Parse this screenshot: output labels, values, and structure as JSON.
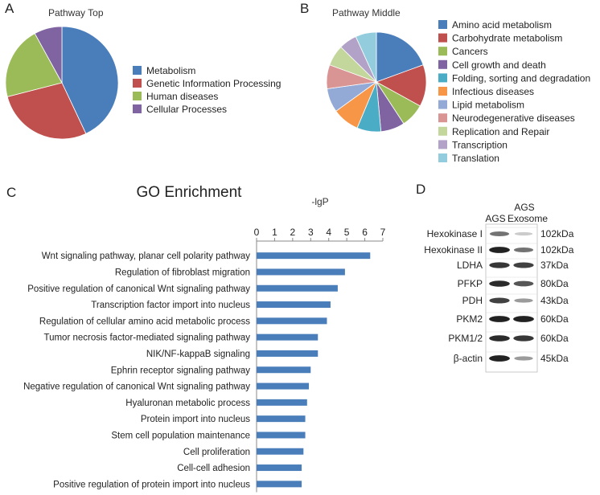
{
  "panels": {
    "A": "A",
    "B": "B",
    "C": "C",
    "D": "D"
  },
  "chart_data": [
    {
      "type": "pie",
      "title": "Pathway Top",
      "categories": [
        "Metabolism",
        "Genetic Information Processing",
        "Human diseases",
        "Cellular Processes"
      ],
      "values": [
        43,
        28,
        21,
        8
      ],
      "colors": [
        "#4a7ebb",
        "#c0504d",
        "#9bbb59",
        "#8064a2"
      ],
      "legend": "right"
    },
    {
      "type": "pie",
      "title": "Pathway Middle",
      "categories": [
        "Amino acid metabolism",
        "Carbohydrate metabolism",
        "Cancers",
        "Cell growth and death",
        "Folding, sorting and degradation",
        "Infectious diseases",
        "Lipid metabolism",
        "Neurodegenerative diseases",
        "Replication and Repair",
        "Transcription",
        "Translation"
      ],
      "values": [
        20,
        14,
        8,
        8,
        8,
        9,
        8,
        8,
        7,
        6,
        7
      ],
      "colors": [
        "#4a7ebb",
        "#c0504d",
        "#9bbb59",
        "#8064a2",
        "#4bacc6",
        "#f79646",
        "#93a9d6",
        "#d99594",
        "#c3d69b",
        "#b3a2c7",
        "#93cddd"
      ],
      "legend": "right"
    },
    {
      "type": "bar",
      "orientation": "horizontal",
      "title": "GO Enrichment",
      "xlabel": "-lgP",
      "xlim": [
        0,
        7
      ],
      "xticks": [
        0,
        1,
        2,
        3,
        4,
        5,
        6,
        7
      ],
      "categories": [
        "Wnt signaling pathway, planar cell polarity pathway",
        "Regulation of fibroblast migration",
        "Positive regulation of canonical Wnt signaling pathway",
        "Transcription factor import into nucleus",
        "Regulation of cellular amino acid metabolic process",
        "Tumor necrosis factor-mediated signaling pathway",
        "NIK/NF-kappaB signaling",
        "Ephrin receptor signaling pathway",
        "Negative regulation of canonical Wnt signaling pathway",
        "Hyaluronan metabolic process",
        "Protein import into nucleus",
        "Stem cell population maintenance",
        "Cell proliferation",
        "Cell-cell adhesion",
        "Positive regulation of protein import into nucleus"
      ],
      "values": [
        6.3,
        4.9,
        4.5,
        4.1,
        3.9,
        3.4,
        3.4,
        3.0,
        2.9,
        2.8,
        2.7,
        2.7,
        2.6,
        2.5,
        2.5
      ],
      "color": "#4a7ebb",
      "grid": false
    }
  ],
  "western": {
    "col1": "AGS",
    "col2_line1": "AGS",
    "col2_line2": "Exosome",
    "rows": [
      {
        "name": "Hexokinase I",
        "kda": "102kDa",
        "left": 0.55,
        "right": 0.12
      },
      {
        "name": "Hexokinase II",
        "kda": "102kDa",
        "left": 0.95,
        "right": 0.55
      },
      {
        "name": "LDHA",
        "kda": "37kDa",
        "left": 0.85,
        "right": 0.8
      },
      {
        "name": "PFKP",
        "kda": "80kDa",
        "left": 0.9,
        "right": 0.7
      },
      {
        "name": "PDH",
        "kda": "43kDa",
        "left": 0.8,
        "right": 0.35
      },
      {
        "name": "PKM2",
        "kda": "60kDa",
        "left": 0.95,
        "right": 0.95
      },
      {
        "name": "PKM1/2",
        "kda": "60kDa",
        "left": 0.9,
        "right": 0.85
      },
      {
        "name": "β-actin",
        "kda": "45kDa",
        "left": 0.95,
        "right": 0.35
      }
    ]
  }
}
